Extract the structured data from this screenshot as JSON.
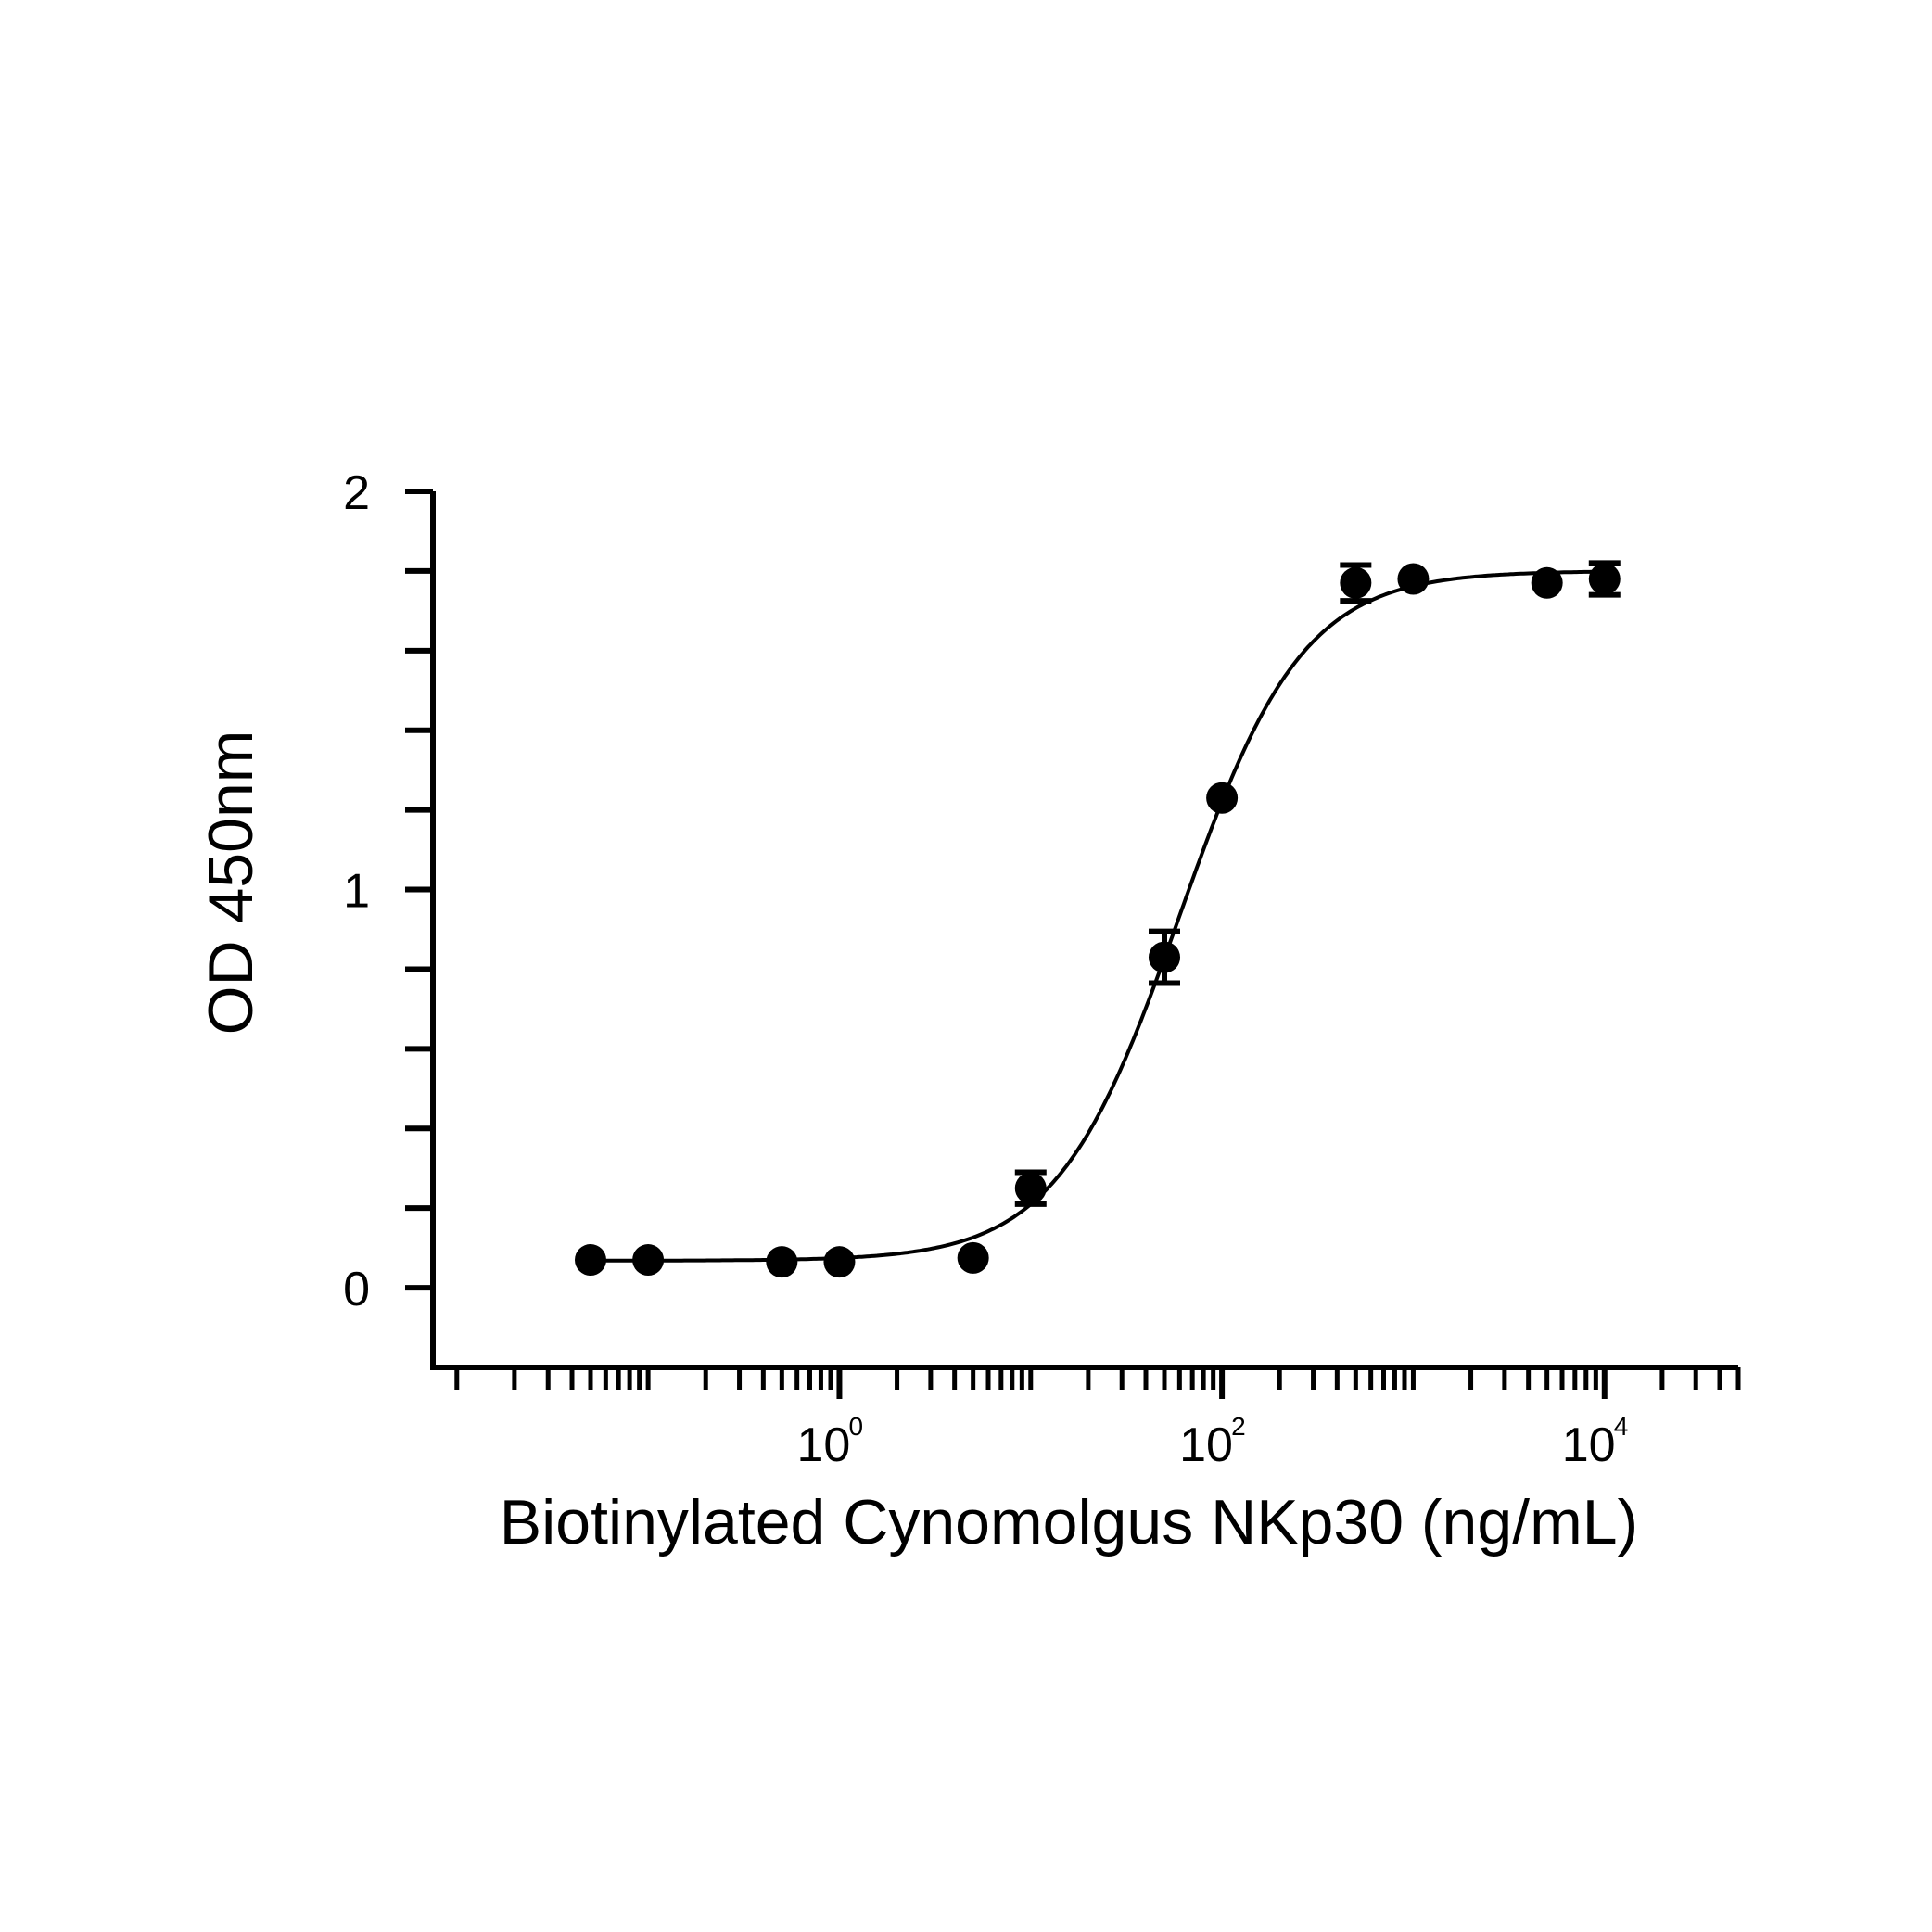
{
  "chart_data": {
    "type": "scatter",
    "x_scale": "log",
    "xlabel": "Biotinylated Cynomolgus NKp30 (ng/mL)",
    "ylabel": "OD 450nm",
    "xlim": [
      0.0075,
      50000
    ],
    "ylim": [
      -0.2,
      2
    ],
    "x_ticks": [
      {
        "base": "10",
        "exp": "0",
        "value": 1
      },
      {
        "base": "10",
        "exp": "2",
        "value": 100
      },
      {
        "base": "10",
        "exp": "4",
        "value": 10000
      }
    ],
    "y_ticks": [
      {
        "label": "0",
        "value": 0
      },
      {
        "label": "1",
        "value": 1
      },
      {
        "label": "2",
        "value": 2
      }
    ],
    "grid": false,
    "legend": "none",
    "series_color": "#000000",
    "points": [
      {
        "x": 0.05,
        "y": 0.07,
        "err": 0.0
      },
      {
        "x": 0.1,
        "y": 0.07,
        "err": 0.0
      },
      {
        "x": 0.5,
        "y": 0.065,
        "err": 0.0
      },
      {
        "x": 1.0,
        "y": 0.065,
        "err": 0.0
      },
      {
        "x": 5.0,
        "y": 0.075,
        "err": 0.0
      },
      {
        "x": 10.0,
        "y": 0.25,
        "err": 0.04
      },
      {
        "x": 50.0,
        "y": 0.83,
        "err": 0.065
      },
      {
        "x": 100.0,
        "y": 1.23,
        "err": 0.0
      },
      {
        "x": 500.0,
        "y": 1.77,
        "err": 0.045
      },
      {
        "x": 1000.0,
        "y": 1.78,
        "err": 0.0
      },
      {
        "x": 5000.0,
        "y": 1.77,
        "err": 0.0
      },
      {
        "x": 10000.0,
        "y": 1.78,
        "err": 0.04
      }
    ],
    "fit": {
      "bottom": 0.068,
      "top": 1.8,
      "ec50": 60,
      "hill": 1.35,
      "x_from": 0.05,
      "x_to": 10000
    }
  }
}
